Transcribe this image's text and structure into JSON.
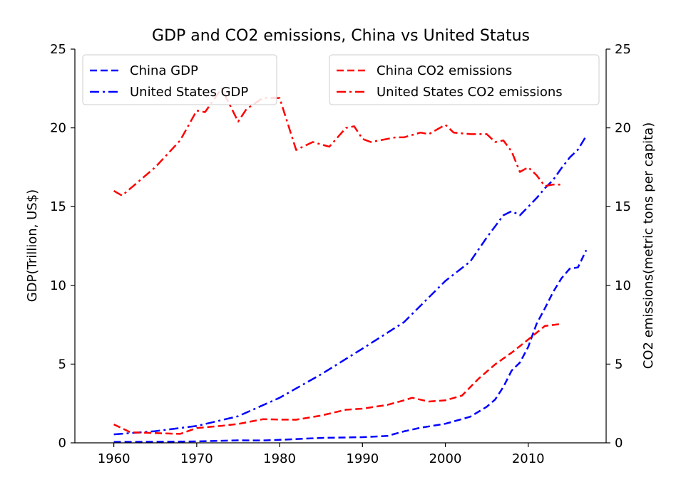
{
  "chart_data": {
    "type": "line",
    "title": "GDP and CO2 emissions, China vs United Status",
    "ylabel_left": "GDP(Trillion, US$)",
    "ylabel_right": "CO2 emissions(metric tons per capita)",
    "xlim": [
      1955.3,
      2019.4
    ],
    "ylim_left": [
      0,
      25
    ],
    "ylim_right": [
      0,
      25
    ],
    "xticks": [
      1960,
      1970,
      1980,
      1990,
      2000,
      2010
    ],
    "yticks_left": [
      0,
      5,
      10,
      15,
      20,
      25
    ],
    "yticks_right": [
      0,
      5,
      10,
      15,
      20,
      25
    ],
    "grid": false,
    "legends": [
      {
        "placement": "upper-left",
        "entries": [
          "China GDP",
          "United States GDP"
        ]
      },
      {
        "placement": "upper-right",
        "entries": [
          "China CO2 emissions",
          "United States CO2 emissions"
        ]
      }
    ],
    "series": [
      {
        "name": "China GDP",
        "axis": "left",
        "color": "#0000ff",
        "style": "dashed",
        "x": [
          1960,
          1965,
          1970,
          1975,
          1978,
          1980,
          1985,
          1990,
          1993,
          1995,
          1997,
          2000,
          2003,
          2005,
          2006,
          2007,
          2008,
          2009,
          2010,
          2011,
          2012,
          2013,
          2014,
          2015,
          2016,
          2017
        ],
        "y": [
          0.06,
          0.07,
          0.09,
          0.16,
          0.15,
          0.19,
          0.31,
          0.36,
          0.44,
          0.73,
          0.96,
          1.21,
          1.66,
          2.29,
          2.75,
          3.55,
          4.59,
          5.1,
          6.09,
          7.55,
          8.53,
          9.57,
          10.44,
          11.06,
          11.14,
          12.24
        ]
      },
      {
        "name": "United States GDP",
        "axis": "left",
        "color": "#0000ff",
        "style": "dashdot",
        "x": [
          1960,
          1965,
          1970,
          1975,
          1980,
          1985,
          1990,
          1995,
          2000,
          2003,
          2005,
          2007,
          2008,
          2009,
          2010,
          2011,
          2012,
          2013,
          2014,
          2015,
          2016,
          2017
        ],
        "y": [
          0.54,
          0.74,
          1.07,
          1.69,
          2.86,
          4.35,
          5.98,
          7.66,
          10.28,
          11.51,
          13.04,
          14.45,
          14.71,
          14.45,
          14.99,
          15.54,
          16.16,
          16.69,
          17.43,
          18.12,
          18.62,
          19.49
        ]
      },
      {
        "name": "China CO2 emissions",
        "axis": "right",
        "color": "#ff0000",
        "style": "dashed",
        "x": [
          1960,
          1962,
          1965,
          1968,
          1970,
          1973,
          1975,
          1978,
          1980,
          1982,
          1985,
          1988,
          1990,
          1993,
          1995,
          1996,
          1998,
          2000,
          2002,
          2004,
          2006,
          2008,
          2010,
          2012,
          2014
        ],
        "y": [
          1.17,
          0.67,
          0.62,
          0.57,
          0.94,
          1.08,
          1.2,
          1.5,
          1.48,
          1.47,
          1.73,
          2.1,
          2.17,
          2.41,
          2.7,
          2.86,
          2.62,
          2.7,
          3.0,
          4.07,
          4.98,
          5.73,
          6.56,
          7.42,
          7.55
        ]
      },
      {
        "name": "United States CO2 emissions",
        "axis": "right",
        "color": "#ff0000",
        "style": "dashdot",
        "x": [
          1960,
          1961,
          1965,
          1968,
          1970,
          1971,
          1973,
          1975,
          1976,
          1978,
          1980,
          1982,
          1984,
          1986,
          1988,
          1989,
          1990,
          1991,
          1994,
          1995,
          1997,
          1998,
          2000,
          2001,
          2003,
          2005,
          2006,
          2007,
          2008,
          2009,
          2010,
          2011,
          2012,
          2013,
          2014
        ],
        "y": [
          16.0,
          15.7,
          17.5,
          19.2,
          21.1,
          21.0,
          22.5,
          20.4,
          21.2,
          21.9,
          21.9,
          18.6,
          19.1,
          18.8,
          20.0,
          20.1,
          19.3,
          19.1,
          19.4,
          19.4,
          19.7,
          19.6,
          20.2,
          19.7,
          19.6,
          19.6,
          19.1,
          19.2,
          18.5,
          17.2,
          17.5,
          17.0,
          16.3,
          16.4,
          16.4
        ]
      }
    ]
  }
}
